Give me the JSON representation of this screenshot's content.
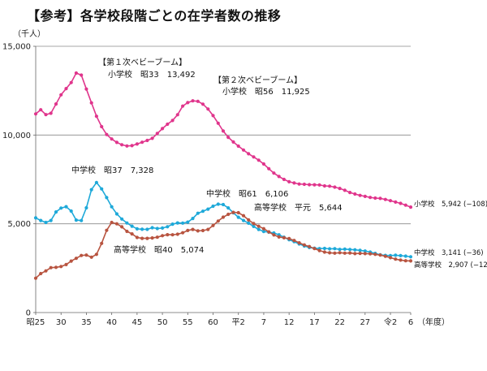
{
  "title": "【参考】各学校段階ごとの在学者数の推移",
  "chart_data": {
    "type": "line",
    "title": "【参考】各学校段階ごとの在学者数の推移",
    "ylabel": "（千人）",
    "xlabel": "（年度）",
    "ylim": [
      0,
      15000
    ],
    "yticks": [
      0,
      5000,
      10000,
      15000
    ],
    "ytick_labels": [
      "0",
      "5,000",
      "10,000",
      "15,000"
    ],
    "xlim": [
      1950,
      2024
    ],
    "xticks": [
      {
        "year": 1950,
        "label": "昭25"
      },
      {
        "year": 1955,
        "label": "30"
      },
      {
        "year": 1960,
        "label": "35"
      },
      {
        "year": 1965,
        "label": "40"
      },
      {
        "year": 1970,
        "label": "45"
      },
      {
        "year": 1975,
        "label": "50"
      },
      {
        "year": 1980,
        "label": "55"
      },
      {
        "year": 1985,
        "label": "60"
      },
      {
        "year": 1990,
        "label": "平2"
      },
      {
        "year": 1995,
        "label": "7"
      },
      {
        "year": 2000,
        "label": "12"
      },
      {
        "year": 2005,
        "label": "17"
      },
      {
        "year": 2010,
        "label": "22"
      },
      {
        "year": 2015,
        "label": "27"
      },
      {
        "year": 2020,
        "label": "令2"
      },
      {
        "year": 2024,
        "label": "6"
      }
    ],
    "grid": "horizontal",
    "series": [
      {
        "name": "小学校",
        "color": "#e0358c",
        "end_label": "小学校　5,942 (−108)",
        "x": [
          1950,
          1951,
          1952,
          1953,
          1954,
          1955,
          1956,
          1957,
          1958,
          1959,
          1960,
          1961,
          1962,
          1963,
          1964,
          1965,
          1966,
          1967,
          1968,
          1969,
          1970,
          1971,
          1972,
          1973,
          1974,
          1975,
          1976,
          1977,
          1978,
          1979,
          1980,
          1981,
          1982,
          1983,
          1984,
          1985,
          1986,
          1987,
          1988,
          1989,
          1990,
          1991,
          1992,
          1993,
          1994,
          1995,
          1996,
          1997,
          1998,
          1999,
          2000,
          2001,
          2002,
          2003,
          2004,
          2005,
          2006,
          2007,
          2008,
          2009,
          2010,
          2011,
          2012,
          2013,
          2014,
          2015,
          2016,
          2017,
          2018,
          2019,
          2020,
          2021,
          2022,
          2023,
          2024
        ],
        "y": [
          11191,
          11423,
          11148,
          11225,
          11750,
          12267,
          12616,
          12956,
          13492,
          13375,
          12591,
          11811,
          11057,
          10471,
          10031,
          9776,
          9584,
          9452,
          9383,
          9403,
          9493,
          9596,
          9696,
          9816,
          10089,
          10365,
          10610,
          10819,
          11146,
          11630,
          11827,
          11925,
          11901,
          11739,
          11465,
          11095,
          10665,
          10226,
          9873,
          9607,
          9373,
          9157,
          8947,
          8769,
          8583,
          8370,
          8105,
          7855,
          7664,
          7500,
          7366,
          7297,
          7239,
          7227,
          7201,
          7197,
          7188,
          7133,
          7122,
          7064,
          6993,
          6887,
          6765,
          6677,
          6600,
          6543,
          6483,
          6448,
          6428,
          6369,
          6301,
          6223,
          6151,
          6050,
          5942
        ]
      },
      {
        "name": "中学校",
        "color": "#1ea9d9",
        "end_label": "中学校　3,141 (−36)",
        "x": [
          1950,
          1951,
          1952,
          1953,
          1954,
          1955,
          1956,
          1957,
          1958,
          1959,
          1960,
          1961,
          1962,
          1963,
          1964,
          1965,
          1966,
          1967,
          1968,
          1969,
          1970,
          1971,
          1972,
          1973,
          1974,
          1975,
          1976,
          1977,
          1978,
          1979,
          1980,
          1981,
          1982,
          1983,
          1984,
          1985,
          1986,
          1987,
          1988,
          1989,
          1990,
          1991,
          1992,
          1993,
          1994,
          1995,
          1996,
          1997,
          1998,
          1999,
          2000,
          2001,
          2002,
          2003,
          2004,
          2005,
          2006,
          2007,
          2008,
          2009,
          2010,
          2011,
          2012,
          2013,
          2014,
          2015,
          2016,
          2017,
          2018,
          2019,
          2020,
          2021,
          2022,
          2023,
          2024
        ],
        "y": [
          5333,
          5188,
          5076,
          5187,
          5664,
          5884,
          5962,
          5718,
          5210,
          5180,
          5900,
          6925,
          7328,
          6964,
          6476,
          5957,
          5555,
          5270,
          5043,
          4865,
          4717,
          4694,
          4688,
          4780,
          4735,
          4762,
          4833,
          4978,
          5048,
          5041,
          5094,
          5300,
          5594,
          5706,
          5828,
          5990,
          6106,
          6082,
          5896,
          5619,
          5369,
          5188,
          5037,
          4850,
          4681,
          4570,
          4527,
          4481,
          4380,
          4244,
          4104,
          3992,
          3863,
          3748,
          3664,
          3627,
          3602,
          3615,
          3592,
          3600,
          3558,
          3573,
          3552,
          3537,
          3504,
          3465,
          3406,
          3333,
          3252,
          3218,
          3211,
          3230,
          3205,
          3177,
          3141
        ]
      },
      {
        "name": "高等学校",
        "color": "#b85440",
        "end_label": "高等学校　2,907 (−12)",
        "x": [
          1950,
          1951,
          1952,
          1953,
          1954,
          1955,
          1956,
          1957,
          1958,
          1959,
          1960,
          1961,
          1962,
          1963,
          1964,
          1965,
          1966,
          1967,
          1968,
          1969,
          1970,
          1971,
          1972,
          1973,
          1974,
          1975,
          1976,
          1977,
          1978,
          1979,
          1980,
          1981,
          1982,
          1983,
          1984,
          1985,
          1986,
          1987,
          1988,
          1989,
          1990,
          1991,
          1992,
          1993,
          1994,
          1995,
          1996,
          1997,
          1998,
          1999,
          2000,
          2001,
          2002,
          2003,
          2004,
          2005,
          2006,
          2007,
          2008,
          2009,
          2010,
          2011,
          2012,
          2013,
          2014,
          2015,
          2016,
          2017,
          2018,
          2019,
          2020,
          2021,
          2022,
          2023,
          2024
        ],
        "y": [
          1935,
          2193,
          2345,
          2528,
          2545,
          2592,
          2703,
          2898,
          3057,
          3216,
          3239,
          3119,
          3281,
          3896,
          4634,
          5074,
          4997,
          4827,
          4571,
          4430,
          4232,
          4178,
          4182,
          4201,
          4246,
          4333,
          4386,
          4381,
          4415,
          4497,
          4622,
          4683,
          4601,
          4617,
          4684,
          4902,
          5154,
          5374,
          5534,
          5644,
          5623,
          5455,
          5218,
          5010,
          4862,
          4725,
          4547,
          4371,
          4258,
          4212,
          4165,
          4062,
          3929,
          3809,
          3719,
          3605,
          3495,
          3407,
          3368,
          3348,
          3369,
          3349,
          3355,
          3320,
          3334,
          3319,
          3309,
          3280,
          3236,
          3169,
          3093,
          3008,
          2956,
          2919,
          2907
        ]
      }
    ],
    "annotations": [
      {
        "text": "【第１次ベビーブーム】",
        "year": 1958
      },
      {
        "text": "小学校　昭33　13,492",
        "year": 1958
      },
      {
        "text": "【第２次ベビーブーム】",
        "year": 1981
      },
      {
        "text": "小学校　昭56　11,925",
        "year": 1981
      },
      {
        "text": "中学校　昭37　7,328",
        "year": 1962
      },
      {
        "text": "中学校　昭61　6,106",
        "year": 1986
      },
      {
        "text": "高等学校　平元　5,644",
        "year": 1989
      },
      {
        "text": "高等学校　昭40　5,074",
        "year": 1965
      }
    ]
  }
}
